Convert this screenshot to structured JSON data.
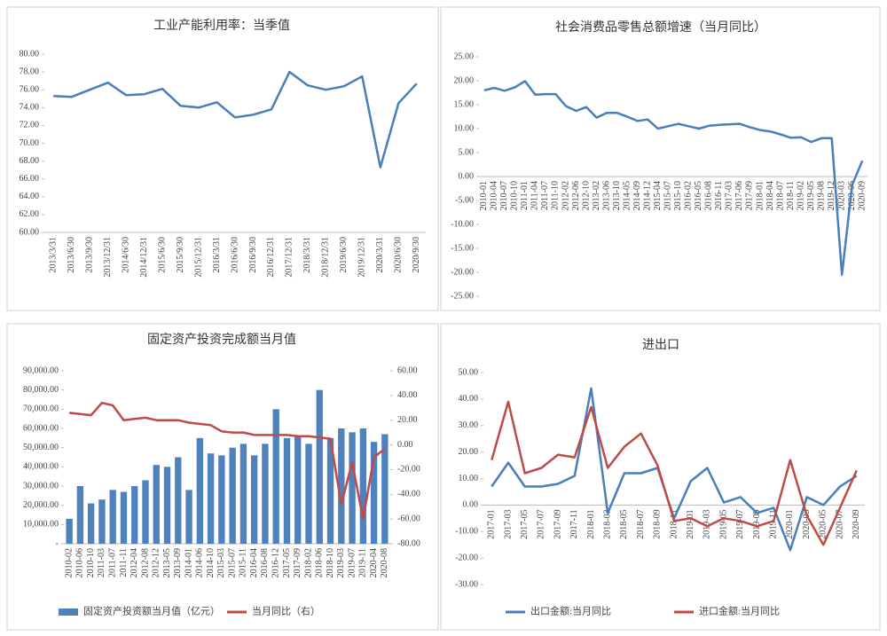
{
  "chart_data": [
    {
      "type": "line",
      "title": "工业产能利用率：当季值",
      "color": "#4a7ebb",
      "categories": [
        "2013/3/31",
        "2013/6/30",
        "2013/9/30",
        "2013/12/31",
        "2014/6/30",
        "2014/12/31",
        "2015/6/30",
        "2015/9/30",
        "2015/12/31",
        "2016/3/31",
        "2016/6/30",
        "2016/9/30",
        "2016/12/31",
        "2017/12/31",
        "2018/3/31",
        "2018/12/31",
        "2019/6/30",
        "2019/12/31",
        "2020/3/31",
        "2020/6/30",
        "2020/9/30"
      ],
      "values": [
        75.3,
        75.2,
        76.0,
        76.8,
        75.4,
        75.5,
        76.1,
        74.2,
        74.0,
        74.6,
        72.9,
        73.2,
        73.8,
        78.0,
        76.5,
        76.0,
        76.4,
        77.5,
        67.3,
        74.5,
        76.7
      ],
      "ylim": [
        60,
        80
      ],
      "yticks": [
        {
          "value": 60,
          "label": "60.00"
        },
        {
          "value": 62,
          "label": "62.00"
        },
        {
          "value": 64,
          "label": "64.00"
        },
        {
          "value": 66,
          "label": "66.00"
        },
        {
          "value": 68,
          "label": "68.00"
        },
        {
          "value": 70,
          "label": "70.00"
        },
        {
          "value": 72,
          "label": "72.00"
        },
        {
          "value": 74,
          "label": "74.00"
        },
        {
          "value": 76,
          "label": "76.00"
        },
        {
          "value": 78,
          "label": "78.00"
        },
        {
          "value": 80,
          "label": "80.00"
        }
      ]
    },
    {
      "type": "line",
      "title": "社会消费品零售总额增速（当月同比）",
      "color": "#4a7ebb",
      "categories": [
        "2010-01",
        "2010-04",
        "2010-07",
        "2010-10",
        "2011-01",
        "2011-04",
        "2011-07",
        "2011-10",
        "2012-02",
        "2012-06",
        "2012-10",
        "2013-02",
        "2013-06",
        "2013-10",
        "2014-05",
        "2014-09",
        "2014-12",
        "2015-04",
        "2015-07",
        "2015-10",
        "2016-02",
        "2016-05",
        "2016-08",
        "2016-11",
        "2017-03",
        "2017-06",
        "2017-09",
        "2018-01",
        "2018-04",
        "2018-07",
        "2018-11",
        "2019-02",
        "2019-05",
        "2019-08",
        "2019-12",
        "2020-03",
        "2020-06",
        "2020-09"
      ],
      "values": [
        18.0,
        18.5,
        17.9,
        18.6,
        19.9,
        17.1,
        17.2,
        17.2,
        14.7,
        13.7,
        14.5,
        12.3,
        13.3,
        13.3,
        12.5,
        11.6,
        11.9,
        10.0,
        10.5,
        11.0,
        10.5,
        10.0,
        10.6,
        10.8,
        10.9,
        11.0,
        10.3,
        9.7,
        9.4,
        8.8,
        8.1,
        8.2,
        7.2,
        8.0,
        8.0,
        -20.5,
        -1.8,
        3.3
      ],
      "ylim": [
        -25,
        25
      ],
      "yticks": [
        {
          "value": -25,
          "label": "-25.00"
        },
        {
          "value": -20,
          "label": "-20.00"
        },
        {
          "value": -15,
          "label": "-15.00"
        },
        {
          "value": -10,
          "label": "-10.00"
        },
        {
          "value": -5,
          "label": "-5.00"
        },
        {
          "value": 0,
          "label": "0.00"
        },
        {
          "value": 5,
          "label": "5.00"
        },
        {
          "value": 10,
          "label": "10.00"
        },
        {
          "value": 15,
          "label": "15.00"
        },
        {
          "value": 20,
          "label": "20.00"
        },
        {
          "value": 25,
          "label": "25.00"
        }
      ]
    },
    {
      "type": "bar",
      "title": "固定资产投资完成额当月值",
      "categories": [
        "2010-02",
        "2010-06",
        "2010-10",
        "2011-03",
        "2011-07",
        "2011-11",
        "2012-04",
        "2012-08",
        "2012-12",
        "2013-05",
        "2013-09",
        "2014-01",
        "2014-06",
        "2014-10",
        "2015-03",
        "2015-07",
        "2015-11",
        "2016-04",
        "2016-08",
        "2016-12",
        "2017-05",
        "2017-09",
        "2018-02",
        "2018-06",
        "2018-10",
        "2019-03",
        "2019-07",
        "2019-11",
        "2020-04",
        "2020-08"
      ],
      "series": [
        {
          "name": "固定资产投资额当月值（亿元）",
          "type": "bar",
          "color": "#4f81bd",
          "values": [
            13000,
            30000,
            21000,
            23000,
            28000,
            27000,
            30000,
            33000,
            41000,
            40000,
            45000,
            28000,
            55000,
            47000,
            46000,
            50000,
            52000,
            46000,
            52000,
            70000,
            55000,
            56000,
            52000,
            80000,
            55000,
            60000,
            58000,
            60000,
            53000,
            57000
          ]
        },
        {
          "name": "当月同比（右）",
          "type": "line",
          "color": "#be4b48",
          "axis": "y2",
          "values": [
            26,
            25,
            24,
            34,
            32,
            20,
            21,
            22,
            20,
            20,
            20,
            18,
            17,
            16,
            11,
            10,
            10,
            8,
            8,
            8,
            8,
            7,
            7,
            6,
            5,
            -48,
            -14,
            -60,
            -10,
            -3
          ]
        }
      ],
      "ylim": [
        0,
        90000
      ],
      "yticks": [
        {
          "value": 0,
          "label": "-"
        },
        {
          "value": 10000,
          "label": "10,000.00"
        },
        {
          "value": 20000,
          "label": "20,000.00"
        },
        {
          "value": 30000,
          "label": "30,000.00"
        },
        {
          "value": 40000,
          "label": "40,000.00"
        },
        {
          "value": 50000,
          "label": "50,000.00"
        },
        {
          "value": 60000,
          "label": "60,000.00"
        },
        {
          "value": 70000,
          "label": "70,000.00"
        },
        {
          "value": 80000,
          "label": "80,000.00"
        },
        {
          "value": 90000,
          "label": "90,000.00"
        }
      ],
      "y2lim": [
        -80,
        60
      ],
      "y2ticks": [
        {
          "value": -80,
          "label": "-80.00"
        },
        {
          "value": -60,
          "label": "-60.00"
        },
        {
          "value": -40,
          "label": "-40.00"
        },
        {
          "value": -20,
          "label": "-20.00"
        },
        {
          "value": 0,
          "label": "0.00"
        },
        {
          "value": 20,
          "label": "20.00"
        },
        {
          "value": 40,
          "label": "40.00"
        },
        {
          "value": 60,
          "label": "60.00"
        }
      ],
      "legend": "bottom"
    },
    {
      "type": "line",
      "title": "进出口",
      "categories": [
        "2017-01",
        "2017-03",
        "2017-05",
        "2017-07",
        "2017-09",
        "2017-11",
        "2018-01",
        "2018-03",
        "2018-05",
        "2018-07",
        "2018-09",
        "2018-11",
        "2019-01",
        "2019-03",
        "2019-05",
        "2019-07",
        "2019-09",
        "2019-11",
        "2020-01",
        "2020-03",
        "2020-05",
        "2020-07",
        "2020-09"
      ],
      "series": [
        {
          "name": "出口金额:当月同比",
          "color": "#4a7ebb",
          "values": [
            7,
            16,
            7,
            7,
            8,
            11,
            44,
            -3,
            12,
            12,
            14,
            -5,
            9,
            14,
            1,
            3,
            -3,
            -1,
            -17,
            3,
            0,
            7,
            11
          ]
        },
        {
          "name": "进口金额:当月同比",
          "color": "#be4b48",
          "values": [
            17,
            39,
            12,
            14,
            19,
            18,
            37,
            14,
            22,
            27,
            15,
            -6,
            -5,
            -8,
            -5,
            -6,
            -8,
            -6,
            17,
            -4,
            -15,
            -1,
            13
          ]
        }
      ],
      "ylim": [
        -30,
        50
      ],
      "yticks": [
        {
          "value": -30,
          "label": "-30.00"
        },
        {
          "value": -20,
          "label": "-20.00"
        },
        {
          "value": -10,
          "label": "-10.00"
        },
        {
          "value": 0,
          "label": "0.00"
        },
        {
          "value": 10,
          "label": "10.00"
        },
        {
          "value": 20,
          "label": "20.00"
        },
        {
          "value": 30,
          "label": "30.00"
        },
        {
          "value": 40,
          "label": "40.00"
        },
        {
          "value": 50,
          "label": "50.00"
        }
      ],
      "legend": "bottom"
    }
  ]
}
